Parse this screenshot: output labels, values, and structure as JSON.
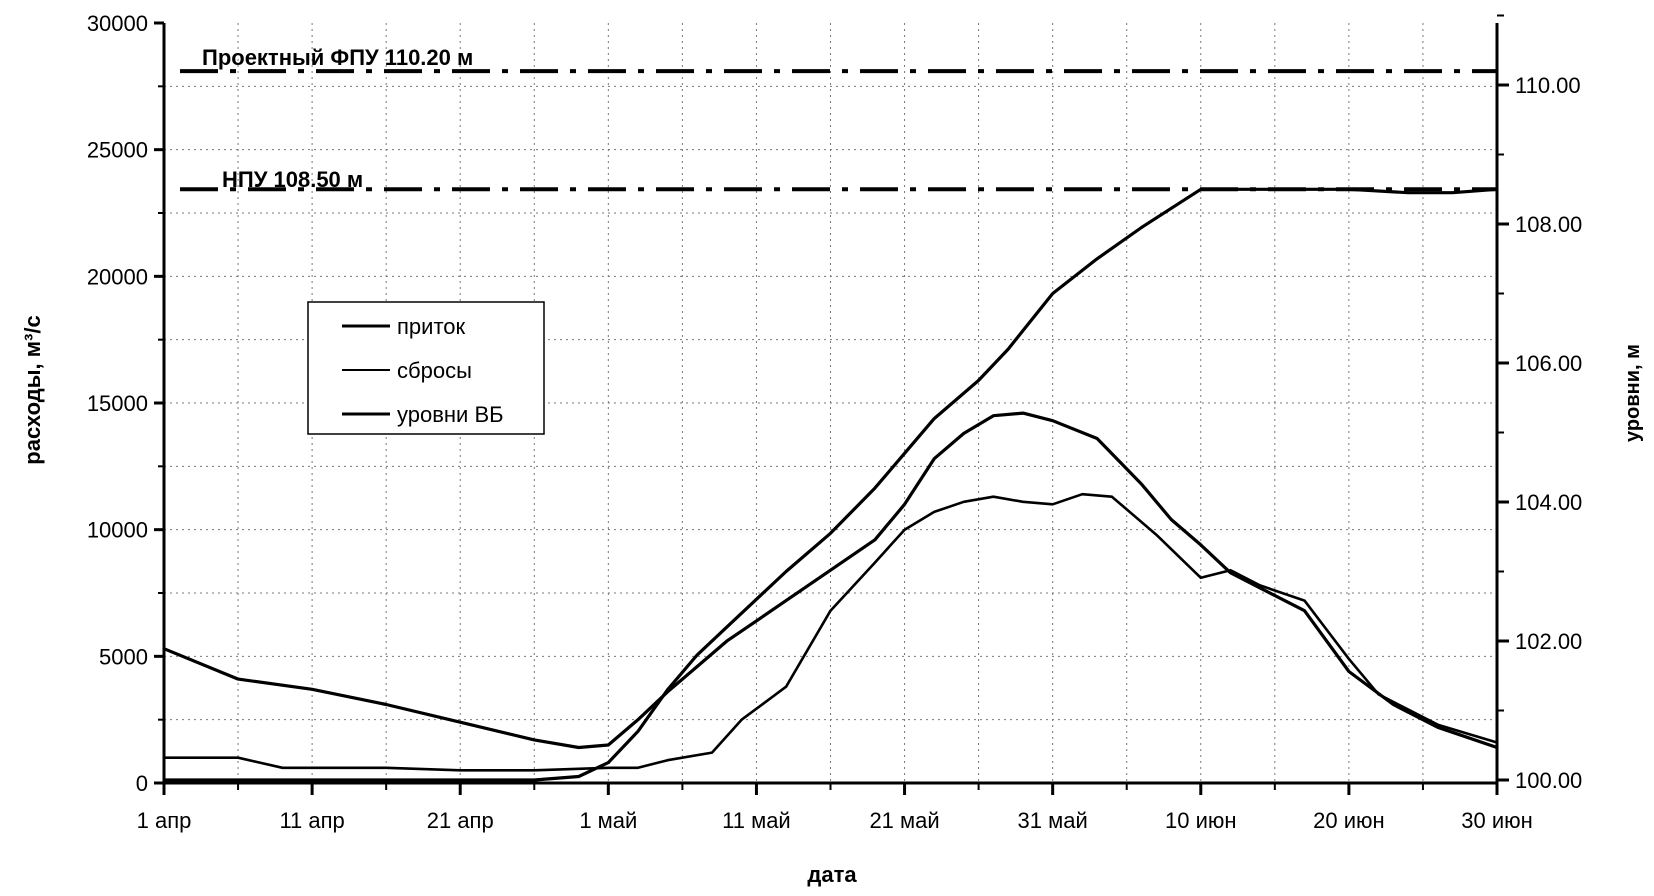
{
  "chart_data": {
    "type": "line",
    "x_axis": {
      "label": "дата",
      "tick_labels": [
        "1 апр",
        "11 апр",
        "21 апр",
        "1 май",
        "11 май",
        "21 май",
        "31 май",
        "10 июн",
        "20 июн",
        "30 июн"
      ],
      "range_days": [
        0,
        90
      ]
    },
    "y_left": {
      "label": "расходы, м³/с",
      "range": [
        0,
        30000
      ],
      "ticks": [
        0,
        5000,
        10000,
        15000,
        20000,
        25000,
        30000
      ]
    },
    "y_right": {
      "label": "уровни, м",
      "range": [
        100.0,
        110.0
      ],
      "ticks": [
        "100.00",
        "102.00",
        "104.00",
        "106.00",
        "108.00",
        "110.00"
      ]
    },
    "grid": "dotted",
    "legend_position": "upper-left",
    "reference_lines": [
      {
        "label": "Проектный ФПУ 110.20 м",
        "level": 110.2
      },
      {
        "label": "НПУ 108.50 м",
        "level": 108.5
      }
    ],
    "series": [
      {
        "name": "приток",
        "axis": "left",
        "x": [
          "1 апр",
          "6 апр",
          "11 апр",
          "16 апр",
          "21 апр",
          "26 апр",
          "29 апр",
          "1 май",
          "3 май",
          "5 май",
          "7 май",
          "9 май",
          "11 май",
          "13 май",
          "15 май",
          "17 май",
          "19 май",
          "21 май",
          "23 май",
          "25 май",
          "27 май",
          "29 май",
          "31 май",
          "3 июн",
          "6 июн",
          "8 июн",
          "10 июн",
          "12 июн",
          "14 июн",
          "17 июн",
          "20 июн",
          "23 июн",
          "26 июн",
          "30 июн"
        ],
        "y": [
          5300,
          4100,
          3700,
          3100,
          2400,
          1700,
          1400,
          1500,
          2500,
          3600,
          4600,
          5600,
          6400,
          7200,
          8000,
          8800,
          9600,
          11000,
          12800,
          13800,
          14500,
          14600,
          14300,
          13600,
          11800,
          10400,
          9400,
          8300,
          7700,
          6800,
          4400,
          3100,
          2200,
          1400
        ]
      },
      {
        "name": "сбросы",
        "axis": "left",
        "x": [
          "1 апр",
          "6 апр",
          "9 апр",
          "16 апр",
          "21 апр",
          "26 апр",
          "1 май",
          "3 май",
          "5 май",
          "8 май",
          "10 май",
          "13 май",
          "16 май",
          "19 май",
          "21 май",
          "23 май",
          "25 май",
          "27 май",
          "29 май",
          "31 май",
          "2 июн",
          "4 июн",
          "7 июн",
          "10 июн",
          "12 июн",
          "14 июн",
          "17 июн",
          "20 июн",
          "22 июн",
          "26 июн",
          "30 июн"
        ],
        "y": [
          1000,
          1000,
          600,
          600,
          500,
          500,
          600,
          600,
          900,
          1200,
          2500,
          3800,
          6800,
          8700,
          10000,
          10700,
          11100,
          11300,
          11100,
          11000,
          11400,
          11300,
          9800,
          8100,
          8400,
          7800,
          7200,
          4900,
          3500,
          2300,
          1600
        ]
      },
      {
        "name": "уровни ВБ",
        "axis": "right",
        "x": [
          "1 апр",
          "11 апр",
          "21 апр",
          "26 апр",
          "29 апр",
          "1 май",
          "3 май",
          "5 май",
          "7 май",
          "9 май",
          "11 май",
          "13 май",
          "16 май",
          "19 май",
          "21 май",
          "23 май",
          "26 май",
          "28 май",
          "31 май",
          "3 июн",
          "6 июн",
          "10 июн",
          "15 июн",
          "20 июн",
          "24 июн",
          "27 июн",
          "30 июн"
        ],
        "y": [
          100.0,
          100.0,
          100.0,
          100.0,
          100.05,
          100.25,
          100.7,
          101.3,
          101.8,
          102.2,
          102.6,
          103.0,
          103.55,
          104.2,
          104.7,
          105.2,
          105.75,
          106.2,
          107.0,
          107.5,
          107.95,
          108.5,
          108.5,
          108.5,
          108.45,
          108.45,
          108.5
        ]
      }
    ]
  }
}
